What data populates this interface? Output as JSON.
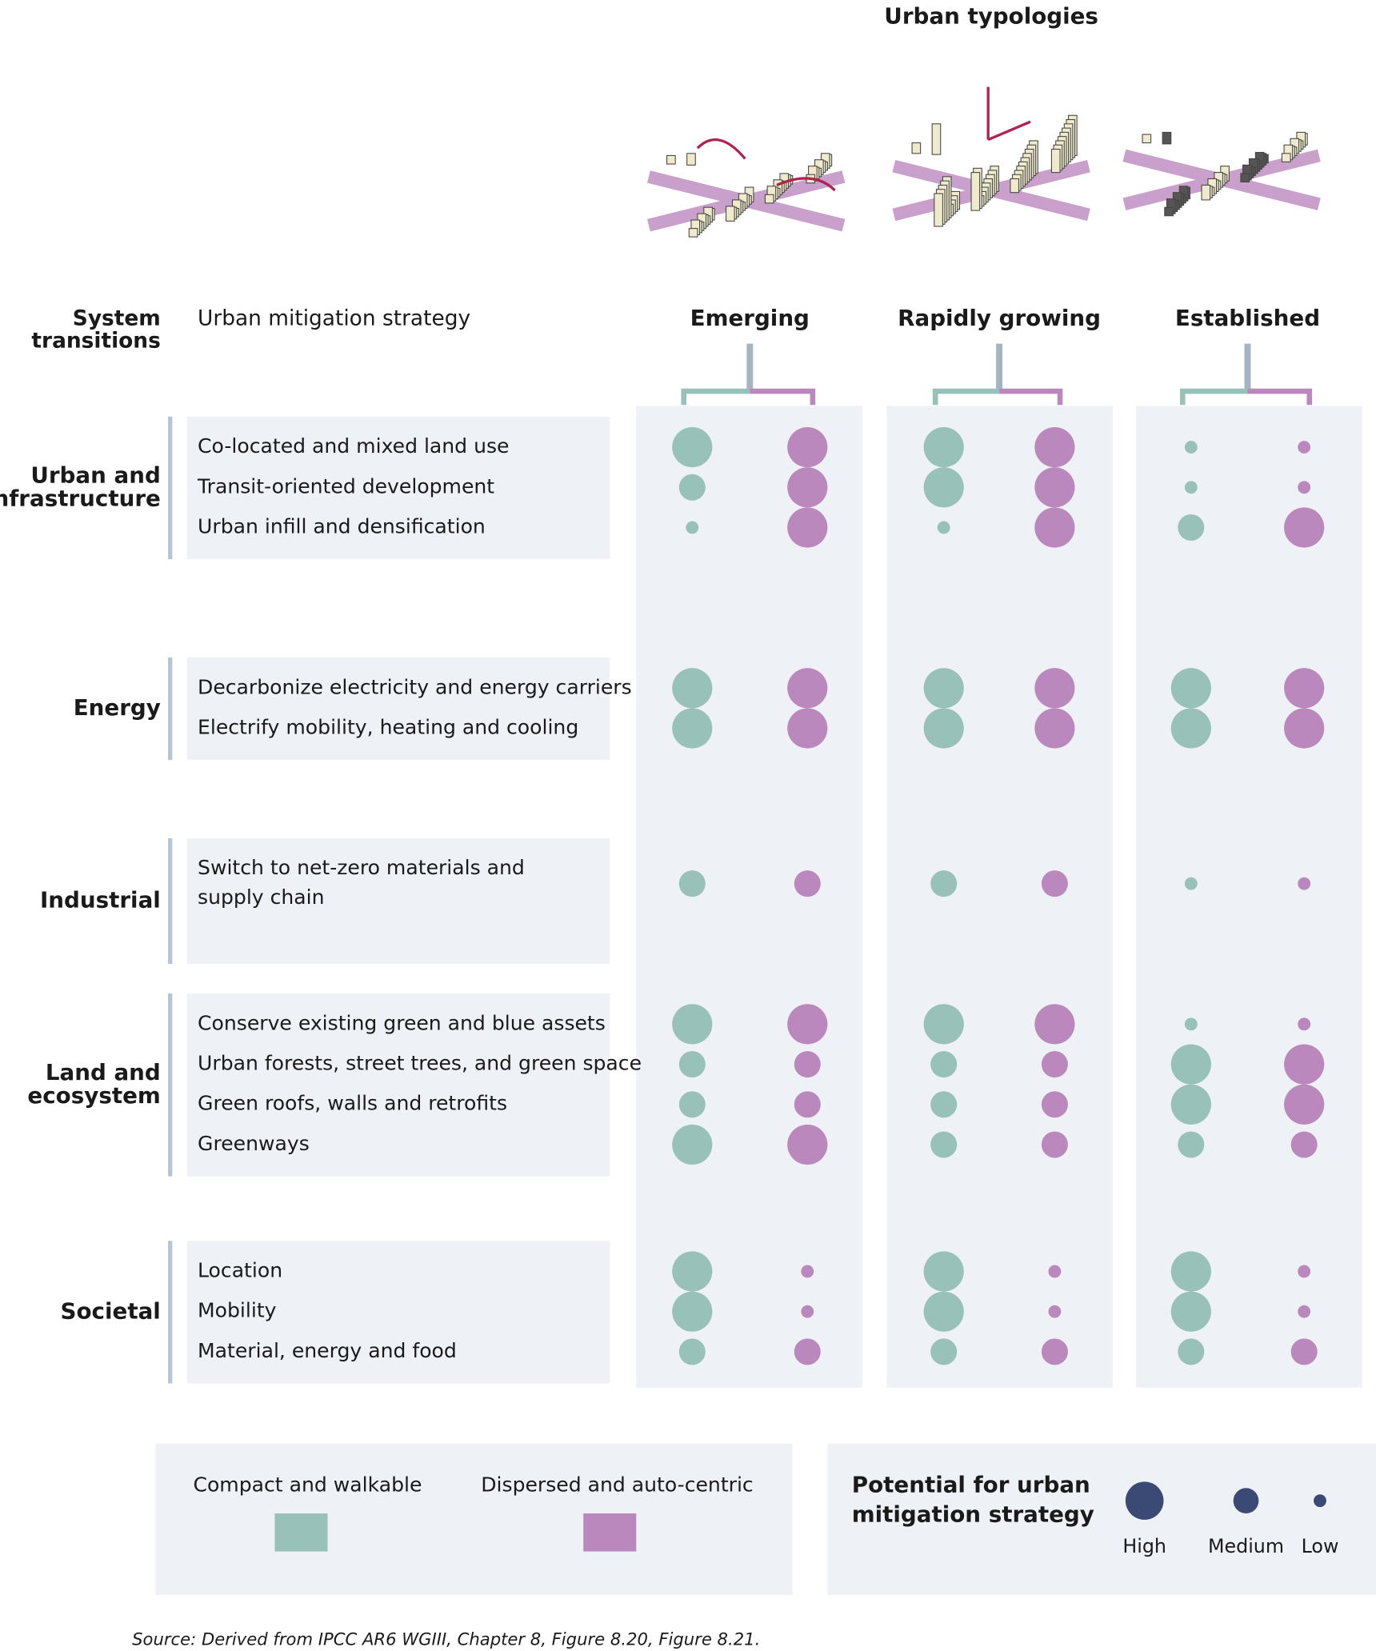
{
  "title": "Urban typologies",
  "header": {
    "system_transitions": [
      "System",
      "transitions"
    ],
    "strategy": "Urban mitigation strategy"
  },
  "typologies": [
    "Emerging",
    "Rapidly growing",
    "Established"
  ],
  "forms": [
    {
      "name": "Compact and walkable",
      "color": "#97c1b9"
    },
    {
      "name": "Dispersed and auto-centric",
      "color": "#bb88bd"
    }
  ],
  "groups": [
    {
      "name": [
        "Urban and",
        "infrastructure"
      ],
      "strategies": [
        {
          "lines": [
            "Co-located and mixed land use"
          ],
          "ratings": [
            [
              "High",
              "High"
            ],
            [
              "High",
              "High"
            ],
            [
              "Low",
              "Low"
            ]
          ]
        },
        {
          "lines": [
            "Transit-oriented development"
          ],
          "ratings": [
            [
              "Medium",
              "High"
            ],
            [
              "High",
              "High"
            ],
            [
              "Low",
              "Low"
            ]
          ]
        },
        {
          "lines": [
            "Urban infill and densification"
          ],
          "ratings": [
            [
              "Low",
              "High"
            ],
            [
              "Low",
              "High"
            ],
            [
              "Medium",
              "High"
            ]
          ]
        }
      ]
    },
    {
      "name": [
        "Energy"
      ],
      "strategies": [
        {
          "lines": [
            "Decarbonize electricity and energy carriers"
          ],
          "ratings": [
            [
              "High",
              "High"
            ],
            [
              "High",
              "High"
            ],
            [
              "High",
              "High"
            ]
          ]
        },
        {
          "lines": [
            "Electrify mobility, heating and cooling"
          ],
          "ratings": [
            [
              "High",
              "High"
            ],
            [
              "High",
              "High"
            ],
            [
              "High",
              "High"
            ]
          ]
        }
      ]
    },
    {
      "name": [
        "Industrial"
      ],
      "strategies": [
        {
          "lines": [
            "Switch to net-zero materials and",
            "supply chain"
          ],
          "ratings": [
            [
              "Medium",
              "Medium"
            ],
            [
              "Medium",
              "Medium"
            ],
            [
              "Low",
              "Low"
            ]
          ]
        }
      ]
    },
    {
      "name": [
        "Land and",
        "ecosystem"
      ],
      "strategies": [
        {
          "lines": [
            "Conserve existing green and blue assets"
          ],
          "ratings": [
            [
              "High",
              "High"
            ],
            [
              "High",
              "High"
            ],
            [
              "Low",
              "Low"
            ]
          ]
        },
        {
          "lines": [
            "Urban forests, street trees, and green space"
          ],
          "ratings": [
            [
              "Medium",
              "Medium"
            ],
            [
              "Medium",
              "Medium"
            ],
            [
              "High",
              "High"
            ]
          ]
        },
        {
          "lines": [
            "Green roofs, walls and retrofits"
          ],
          "ratings": [
            [
              "Medium",
              "Medium"
            ],
            [
              "Medium",
              "Medium"
            ],
            [
              "High",
              "High"
            ]
          ]
        },
        {
          "lines": [
            "Greenways"
          ],
          "ratings": [
            [
              "High",
              "High"
            ],
            [
              "Medium",
              "Medium"
            ],
            [
              "Medium",
              "Medium"
            ]
          ]
        }
      ]
    },
    {
      "name": [
        "Societal"
      ],
      "strategies": [
        {
          "lines": [
            "Location"
          ],
          "ratings": [
            [
              "High",
              "Low"
            ],
            [
              "High",
              "Low"
            ],
            [
              "High",
              "Low"
            ]
          ]
        },
        {
          "lines": [
            "Mobility"
          ],
          "ratings": [
            [
              "High",
              "Low"
            ],
            [
              "High",
              "Low"
            ],
            [
              "High",
              "Low"
            ]
          ]
        },
        {
          "lines": [
            "Material, energy and food"
          ],
          "ratings": [
            [
              "Medium",
              "Medium"
            ],
            [
              "Medium",
              "Medium"
            ],
            [
              "Medium",
              "Medium"
            ]
          ]
        }
      ]
    }
  ],
  "legend": {
    "potential": [
      "Potential for urban",
      "mitigation strategy"
    ],
    "levels": [
      "High",
      "Medium",
      "Low"
    ],
    "level_color": "#3a4a74"
  },
  "source": "Source: Derived from IPCC AR6 WGIII, Chapter 8, Figure 8.20, Figure 8.21."
}
